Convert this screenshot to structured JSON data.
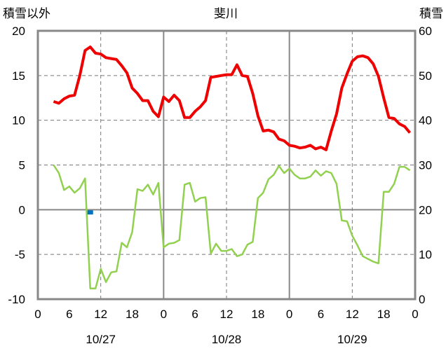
{
  "chart_data": {
    "type": "line",
    "title": "斐川",
    "left_axis_label": "積雪以外",
    "right_axis_label": "積雪",
    "ylim_left": [
      -10,
      20
    ],
    "ylim_right": [
      0,
      60
    ],
    "y_ticks_left": [
      "20",
      "15",
      "10",
      "5",
      "0",
      "-5",
      "-10"
    ],
    "y_ticks_right": [
      "60",
      "50",
      "40",
      "30",
      "20",
      "10",
      "0"
    ],
    "x_ticks": [
      "0",
      "6",
      "12",
      "18",
      "0",
      "6",
      "12",
      "18",
      "0",
      "6",
      "12",
      "18",
      "0"
    ],
    "date_labels": [
      "10/27",
      "10/28",
      "10/29"
    ],
    "xlim_hours": [
      0,
      72
    ],
    "grid": "dashed at 12h, solid at day boundaries",
    "colors": {
      "temperature": "#ee0000",
      "dewpoint": "#92d050",
      "snow": "#0070c0",
      "frame": "#888888"
    },
    "series": [
      {
        "axis": "left",
        "color": "#ee0000",
        "x": [
          3,
          4,
          5,
          6,
          7,
          8,
          9,
          10,
          11,
          12,
          13,
          14,
          15,
          16,
          17,
          18,
          19,
          20,
          21,
          22,
          23,
          24,
          25,
          26,
          27,
          28,
          29,
          30,
          31,
          32,
          33,
          34,
          35,
          36,
          37,
          38,
          39,
          40,
          41,
          42,
          43,
          44,
          45,
          46,
          47,
          48,
          49,
          50,
          51,
          52,
          53,
          54,
          55,
          56,
          57,
          58,
          59,
          60,
          61,
          62,
          63,
          64,
          65,
          66,
          67,
          68,
          69,
          70,
          71
        ],
        "values": [
          12.1,
          11.9,
          12.4,
          12.7,
          12.8,
          15.0,
          17.8,
          18.2,
          17.5,
          17.4,
          17.0,
          16.9,
          16.8,
          16.1,
          15.3,
          13.6,
          13.0,
          12.2,
          12.2,
          11.0,
          10.4,
          12.6,
          12.1,
          12.8,
          12.2,
          10.3,
          10.3,
          11.0,
          11.5,
          12.2,
          14.8,
          14.9,
          15.0,
          15.1,
          15.1,
          16.2,
          15.0,
          14.9,
          13.0,
          10.5,
          8.8,
          8.9,
          8.7,
          7.9,
          7.7,
          7.2,
          7.1,
          6.9,
          7.0,
          7.2,
          6.8,
          7.0,
          6.7,
          8.8,
          10.7,
          13.6,
          15.2,
          16.6,
          17.1,
          17.2,
          17.0,
          16.3,
          14.9,
          12.5,
          10.3,
          10.2,
          9.6,
          9.3,
          8.6
        ]
      },
      {
        "axis": "left",
        "color": "#92d050",
        "x": [
          3,
          4,
          5,
          6,
          7,
          8,
          9,
          10,
          11,
          12,
          13,
          14,
          15,
          16,
          17,
          18,
          19,
          20,
          21,
          22,
          23,
          24,
          25,
          26,
          27,
          28,
          29,
          30,
          31,
          32,
          33,
          34,
          35,
          36,
          37,
          38,
          39,
          40,
          41,
          42,
          43,
          44,
          45,
          46,
          47,
          48,
          49,
          50,
          51,
          52,
          53,
          54,
          55,
          56,
          57,
          58,
          59,
          60,
          61,
          62,
          63,
          64,
          65,
          66,
          67,
          68,
          69,
          70,
          71
        ],
        "values": [
          5.0,
          4.1,
          2.2,
          2.6,
          1.9,
          2.4,
          3.5,
          -8.8,
          -8.8,
          -6.6,
          -8.1,
          -7.0,
          -6.9,
          -3.7,
          -4.2,
          -2.5,
          2.3,
          2.1,
          2.8,
          1.7,
          3.0,
          -4.2,
          -3.8,
          -3.7,
          -3.4,
          2.8,
          3.0,
          0.9,
          1.3,
          1.4,
          -4.9,
          -3.8,
          -4.6,
          -4.6,
          -4.4,
          -5.2,
          -5.0,
          -3.9,
          -3.6,
          1.3,
          1.9,
          3.4,
          3.9,
          4.9,
          4.1,
          4.6,
          3.9,
          3.5,
          3.5,
          3.7,
          4.4,
          3.8,
          4.3,
          4.1,
          2.9,
          -1.2,
          -1.3,
          -2.9,
          -4.0,
          -5.2,
          -5.5,
          -5.8,
          -6.0,
          2.0,
          2.0,
          2.9,
          4.8,
          4.8,
          4.4
        ]
      },
      {
        "axis": "left",
        "color": "#0070c0",
        "x": [
          10
        ],
        "values": [
          -0.3
        ]
      }
    ]
  }
}
